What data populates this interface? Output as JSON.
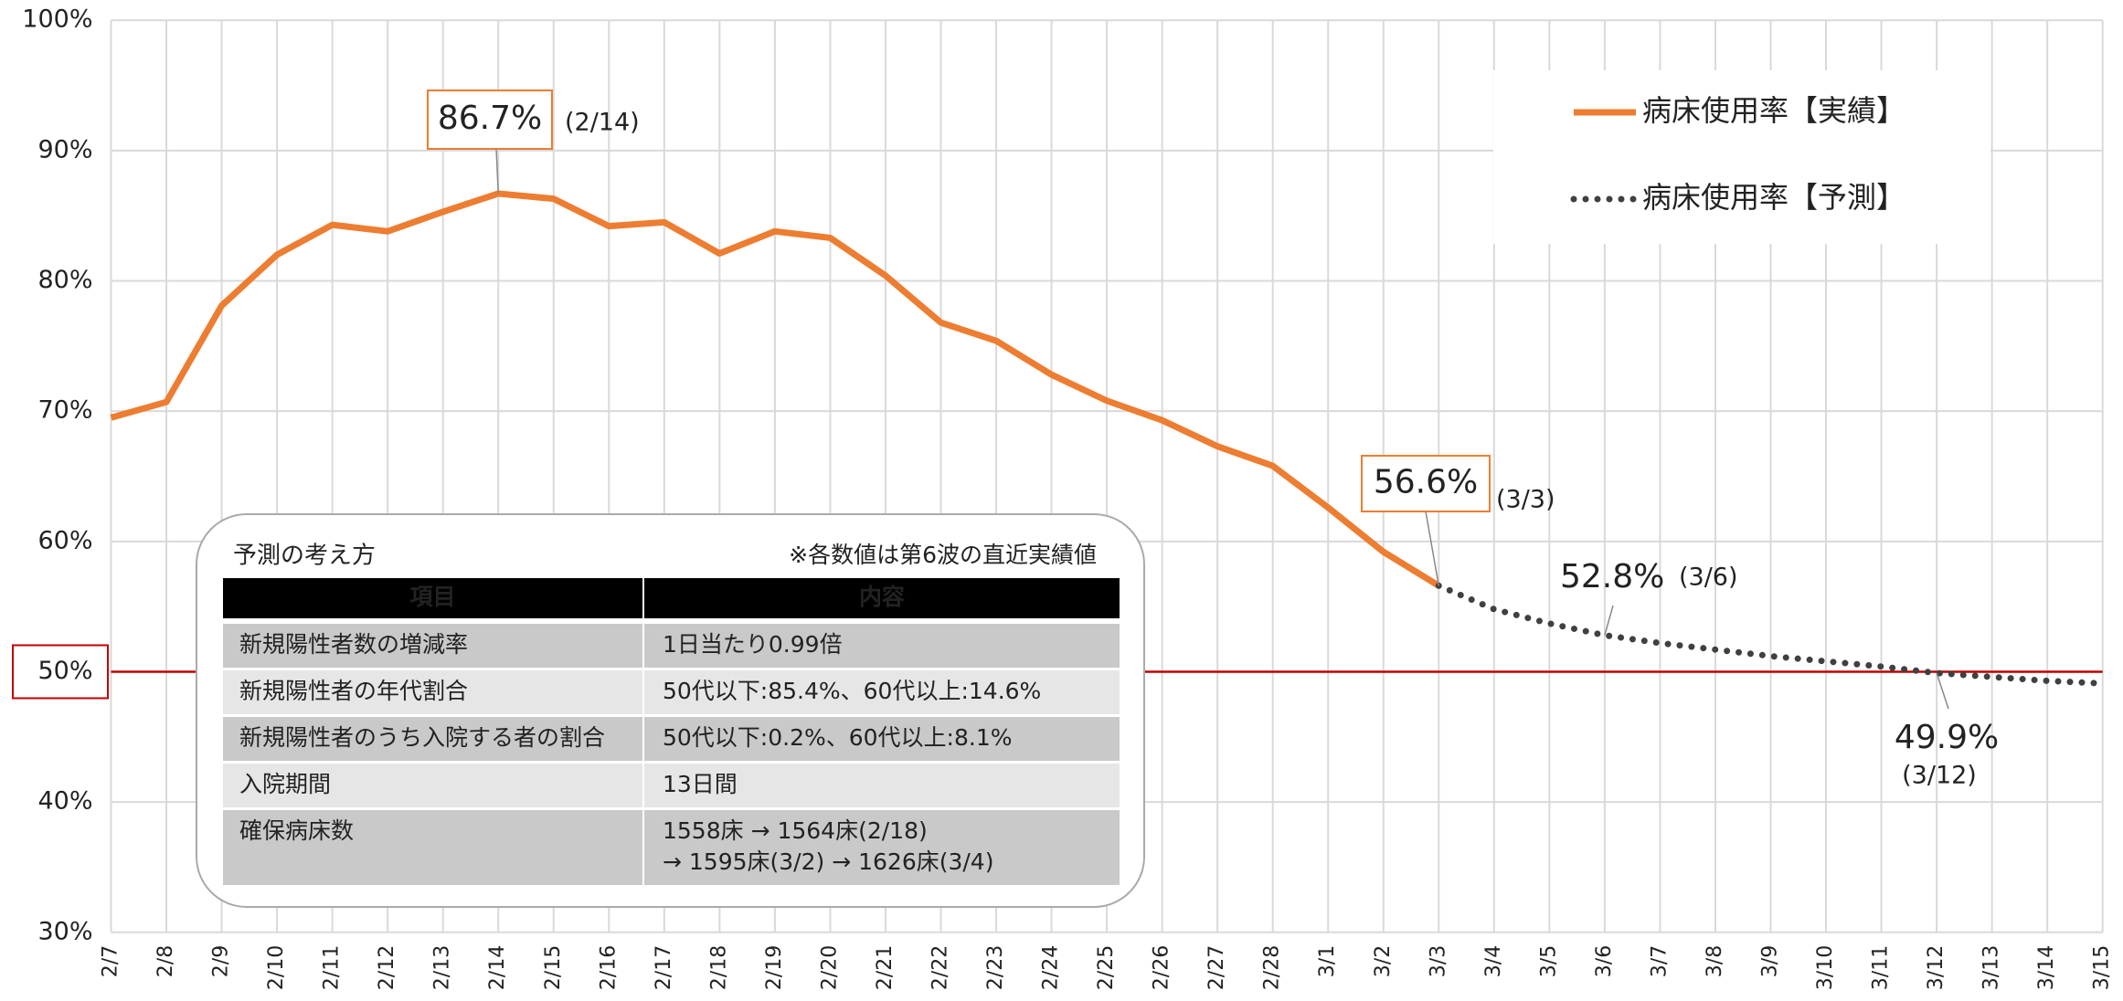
{
  "chart_data": {
    "type": "line",
    "categories": [
      "2/7",
      "2/8",
      "2/9",
      "2/10",
      "2/11",
      "2/12",
      "2/13",
      "2/14",
      "2/15",
      "2/16",
      "2/17",
      "2/18",
      "2/19",
      "2/20",
      "2/21",
      "2/22",
      "2/23",
      "2/24",
      "2/25",
      "2/26",
      "2/27",
      "2/28",
      "3/1",
      "3/2",
      "3/3",
      "3/4",
      "3/5",
      "3/6",
      "3/7",
      "3/8",
      "3/9",
      "3/10",
      "3/11",
      "3/12",
      "3/13",
      "3/14",
      "3/15"
    ],
    "series": [
      {
        "name": "病床使用率【実績】",
        "color": "#ed7d31",
        "style": "solid",
        "values": [
          69.5,
          70.7,
          78.1,
          82.0,
          84.3,
          83.8,
          85.3,
          86.7,
          86.3,
          84.2,
          84.5,
          82.1,
          83.8,
          83.3,
          80.4,
          76.8,
          75.4,
          72.8,
          70.8,
          69.3,
          67.3,
          65.8,
          62.6,
          59.2,
          56.6,
          null,
          null,
          null,
          null,
          null,
          null,
          null,
          null,
          null,
          null,
          null,
          null
        ],
        "value_labels": [
          null,
          null,
          null,
          null,
          null,
          null,
          null,
          "86.7%",
          null,
          null,
          null,
          null,
          null,
          null,
          null,
          null,
          null,
          null,
          null,
          null,
          null,
          null,
          null,
          null,
          "56.6%",
          null,
          null,
          null,
          null,
          null,
          null,
          null,
          null,
          null,
          null,
          null,
          null
        ],
        "value_label_notes": [
          null,
          null,
          null,
          null,
          null,
          null,
          null,
          "(2/14)",
          null,
          null,
          null,
          null,
          null,
          null,
          null,
          null,
          null,
          null,
          null,
          null,
          null,
          null,
          null,
          null,
          "(3/3)",
          null,
          null,
          null,
          null,
          null,
          null,
          null,
          null,
          null,
          null,
          null,
          null
        ]
      },
      {
        "name": "病床使用率【予測】",
        "color": "#404040",
        "style": "dotted",
        "values": [
          null,
          null,
          null,
          null,
          null,
          null,
          null,
          null,
          null,
          null,
          null,
          null,
          null,
          null,
          null,
          null,
          null,
          null,
          null,
          null,
          null,
          null,
          null,
          null,
          56.6,
          54.8,
          53.7,
          52.8,
          52.2,
          51.7,
          51.2,
          50.8,
          50.4,
          49.9,
          49.6,
          49.3,
          49.1
        ],
        "value_labels": [
          null,
          null,
          null,
          null,
          null,
          null,
          null,
          null,
          null,
          null,
          null,
          null,
          null,
          null,
          null,
          null,
          null,
          null,
          null,
          null,
          null,
          null,
          null,
          null,
          null,
          null,
          null,
          "52.8%",
          null,
          null,
          null,
          null,
          null,
          "49.9%",
          null,
          null,
          null
        ],
        "value_label_notes": [
          null,
          null,
          null,
          null,
          null,
          null,
          null,
          null,
          null,
          null,
          null,
          null,
          null,
          null,
          null,
          null,
          null,
          null,
          null,
          null,
          null,
          null,
          null,
          null,
          null,
          null,
          null,
          "(3/6)",
          null,
          null,
          null,
          null,
          null,
          "(3/12)",
          null,
          null,
          null
        ]
      }
    ],
    "ylim": [
      30,
      100
    ],
    "yticks": [
      {
        "value": 30,
        "label": "30%"
      },
      {
        "value": 40,
        "label": "40%"
      },
      {
        "value": 50,
        "label": "50%"
      },
      {
        "value": 60,
        "label": "60%"
      },
      {
        "value": 70,
        "label": "70%"
      },
      {
        "value": 80,
        "label": "80%"
      },
      {
        "value": 90,
        "label": "90%"
      },
      {
        "value": 100,
        "label": "100%"
      }
    ],
    "reference_line": {
      "value": 50,
      "color": "#c00000"
    },
    "grid": true,
    "legend": "upper right",
    "inset": {
      "title": "予測の考え方",
      "note": "※各数値は第6波の直近実績値",
      "header": [
        "項目",
        "内容"
      ],
      "rows": [
        [
          "新規陽性者数の増減率",
          [
            "1日当たり0.99倍"
          ]
        ],
        [
          "新規陽性者の年代割合",
          [
            "50代以下:85.4%、60代以上:14.6%"
          ]
        ],
        [
          "新規陽性者のうち入院する者の割合",
          [
            "50代以下:0.2%、60代以上:8.1%"
          ]
        ],
        [
          "入院期間",
          [
            "13日間"
          ]
        ],
        [
          "確保病床数",
          [
            "1558床 → 1564床(2/18)",
            "→ 1595床(3/2) → 1626床(3/4)"
          ]
        ]
      ]
    }
  }
}
